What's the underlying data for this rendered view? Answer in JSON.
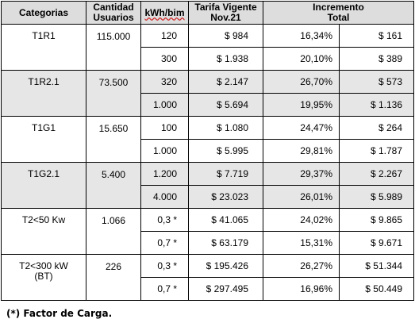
{
  "table": {
    "headers": {
      "categorias": "Categorias",
      "cantidad_usuarios": [
        "Cantidad",
        "Usuarios"
      ],
      "kwh_bim": "kWh/bim",
      "tarifa_vigente": [
        "Tarifa Vigente",
        "Nov.21"
      ],
      "incremento_total": [
        "Incremento",
        "Total"
      ]
    },
    "groups": [
      {
        "categoria": [
          "T1R1"
        ],
        "usuarios": "115.000",
        "shaded": false,
        "rows": [
          {
            "kwh": "120",
            "tarifa": "$ 984",
            "pct": "16,34%",
            "monto": "$ 161"
          },
          {
            "kwh": "300",
            "tarifa": "$ 1.938",
            "pct": "20,10%",
            "monto": "$ 389"
          }
        ]
      },
      {
        "categoria": [
          "T1R2.1"
        ],
        "usuarios": "73.500",
        "shaded": true,
        "rows": [
          {
            "kwh": "320",
            "tarifa": "$ 2.147",
            "pct": "26,70%",
            "monto": "$ 573"
          },
          {
            "kwh": "1.000",
            "tarifa": "$ 5.694",
            "pct": "19,95%",
            "monto": "$ 1.136"
          }
        ]
      },
      {
        "categoria": [
          "T1G1"
        ],
        "usuarios": "15.650",
        "shaded": false,
        "rows": [
          {
            "kwh": "100",
            "tarifa": "$ 1.080",
            "pct": "24,47%",
            "monto": "$ 264"
          },
          {
            "kwh": "1.000",
            "tarifa": "$ 5.995",
            "pct": "29,81%",
            "monto": "$ 1.787"
          }
        ]
      },
      {
        "categoria": [
          "T1G2.1"
        ],
        "usuarios": "5.400",
        "shaded": true,
        "rows": [
          {
            "kwh": "1.200",
            "tarifa": "$ 7.719",
            "pct": "29,37%",
            "monto": "$ 2.267"
          },
          {
            "kwh": "4.000",
            "tarifa": "$ 23.023",
            "pct": "26,01%",
            "monto": "$ 5.989"
          }
        ]
      },
      {
        "categoria": [
          "T2<50 Kw"
        ],
        "usuarios": "1.066",
        "shaded": false,
        "rows": [
          {
            "kwh": "0,3 *",
            "tarifa": "$ 41.065",
            "pct": "24,02%",
            "monto": "$ 9.865"
          },
          {
            "kwh": "0,7 *",
            "tarifa": "$ 63.179",
            "pct": "15,31%",
            "monto": "$ 9.671"
          }
        ]
      },
      {
        "categoria": [
          "T2<300 kW",
          "(BT)"
        ],
        "usuarios": "226",
        "shaded": false,
        "rows": [
          {
            "kwh": "0,3 *",
            "tarifa": "$ 195.426",
            "pct": "26,27%",
            "monto": "$ 51.344"
          },
          {
            "kwh": "0,7 *",
            "tarifa": "$ 297.495",
            "pct": "16,96%",
            "monto": "$ 50.449"
          }
        ]
      }
    ]
  },
  "footnote": "(*) Factor de Carga."
}
